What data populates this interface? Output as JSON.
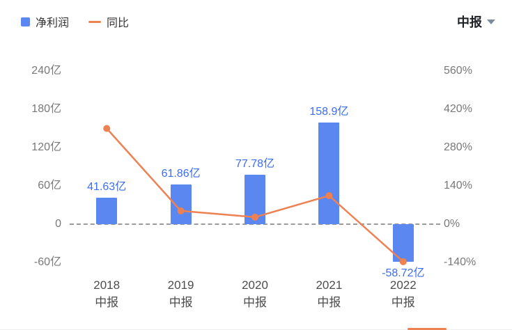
{
  "header": {
    "period": "中报"
  },
  "legend": {
    "items": [
      {
        "label": "净利润",
        "type": "bar",
        "color": "#5b87f0"
      },
      {
        "label": "同比",
        "type": "line",
        "color": "#ee8152"
      }
    ]
  },
  "chart_data": {
    "type": "bar+line",
    "title": "",
    "legend_position": "top-left",
    "grid": false,
    "zero_line_dashed": true,
    "categories": [
      [
        "2018",
        "中报"
      ],
      [
        "2019",
        "中报"
      ],
      [
        "2020",
        "中报"
      ],
      [
        "2021",
        "中报"
      ],
      [
        "2022",
        "中报"
      ]
    ],
    "series": [
      {
        "name": "净利润",
        "type": "bar",
        "axis": "left",
        "unit": "亿",
        "values": [
          41.63,
          61.86,
          77.78,
          158.9,
          -58.72
        ],
        "labels": [
          "41.63亿",
          "61.86亿",
          "77.78亿",
          "158.9亿",
          "-58.72亿"
        ],
        "color": "#5b87f0"
      },
      {
        "name": "同比",
        "type": "line",
        "axis": "right",
        "unit": "%",
        "values": [
          350,
          48.6,
          25.7,
          104.3,
          -137
        ],
        "color": "#ee8152"
      }
    ],
    "left_axis": {
      "ticks": [
        "240亿",
        "180亿",
        "120亿",
        "60亿",
        "0",
        "-60亿"
      ],
      "values": [
        240,
        180,
        120,
        60,
        0,
        -60
      ],
      "step": 60,
      "range": [
        -60,
        240
      ]
    },
    "right_axis": {
      "ticks": [
        "560%",
        "420%",
        "280%",
        "140%",
        "0%",
        "-140%"
      ],
      "values": [
        560,
        420,
        280,
        140,
        0,
        -140
      ],
      "step": 140,
      "range": [
        -140,
        560
      ]
    }
  }
}
